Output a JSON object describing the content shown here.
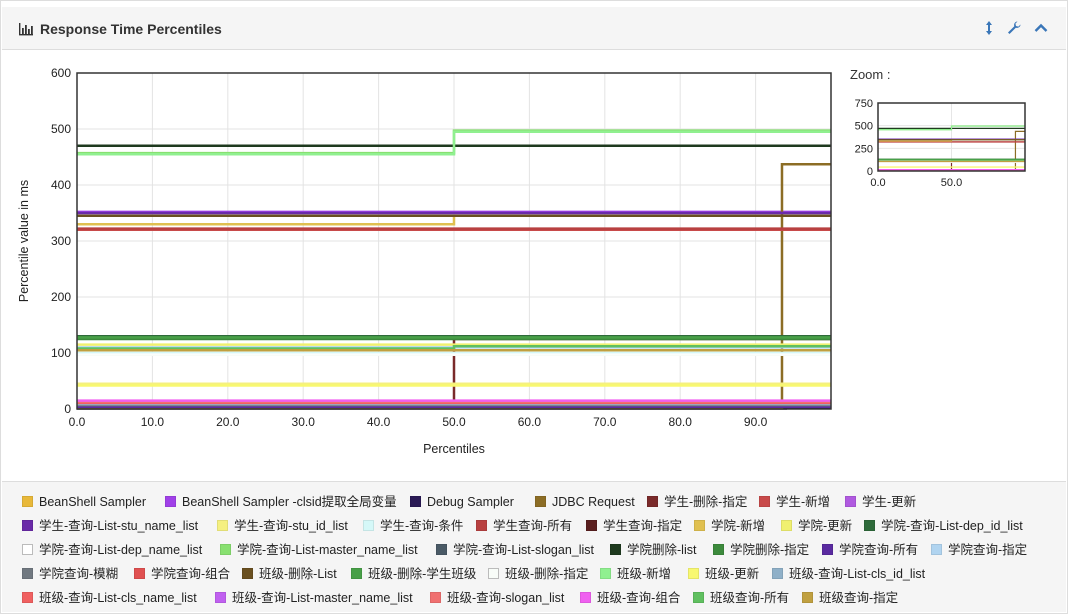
{
  "panel": {
    "title": "Response Time Percentiles",
    "icons": [
      "bar-chart-icon",
      "expand-vertical-icon",
      "wrench-icon",
      "chevron-up-icon"
    ]
  },
  "zoom": {
    "label": "Zoom :",
    "ylim": [
      0,
      750
    ],
    "yticks": [
      "750",
      "500",
      "250",
      "0"
    ],
    "xticks": [
      "0.0",
      "50.0"
    ]
  },
  "chart_data": {
    "type": "line",
    "xlabel": "Percentiles",
    "ylabel": "Percentile value in ms",
    "xlim": [
      0,
      100
    ],
    "ylim": [
      0,
      600
    ],
    "xticks": [
      0,
      10,
      20,
      30,
      40,
      50,
      60,
      70,
      80,
      90
    ],
    "xtick_labels": [
      "0.0",
      "10.0",
      "20.0",
      "30.0",
      "40.0",
      "50.0",
      "60.0",
      "70.0",
      "80.0",
      "90.0"
    ],
    "yticks": [
      0,
      100,
      200,
      300,
      400,
      500,
      600
    ],
    "ytick_labels": [
      "0",
      "100",
      "200",
      "300",
      "400",
      "500",
      "600"
    ],
    "grid": true,
    "legend_position": "bottom",
    "series": [
      {
        "name": "BeanShell Sampler",
        "color": "#e8b839",
        "points": [
          [
            0,
            2
          ],
          [
            100,
            2
          ]
        ]
      },
      {
        "name": "BeanShell Sampler -clsid提取全局变量",
        "color": "#a040e8",
        "points": [
          [
            0,
            352
          ],
          [
            100,
            352
          ]
        ]
      },
      {
        "name": "Debug Sampler",
        "color": "#2a1a55",
        "points": [
          [
            0,
            1
          ],
          [
            94,
            1
          ],
          [
            94,
            3
          ],
          [
            100,
            3
          ]
        ]
      },
      {
        "name": "JDBC Request",
        "color": "#8c6d25",
        "points": [
          [
            0,
            2
          ],
          [
            93.5,
            2
          ],
          [
            93.5,
            437
          ],
          [
            100,
            437
          ]
        ]
      },
      {
        "name": "学生-删除-指定",
        "color": "#7a2a2a",
        "points": [
          [
            0,
            5
          ],
          [
            50,
            5
          ],
          [
            50,
            125
          ],
          [
            100,
            125
          ]
        ]
      },
      {
        "name": "学生-新增",
        "color": "#c84a4a",
        "points": [
          [
            0,
            320
          ],
          [
            100,
            320
          ]
        ]
      },
      {
        "name": "学生-更新",
        "color": "#b05ae0",
        "points": [
          [
            0,
            12
          ],
          [
            100,
            12
          ]
        ]
      },
      {
        "name": "学生-查询-List-stu_name_list",
        "color": "#6a2aa8",
        "points": [
          [
            0,
            350
          ],
          [
            100,
            350
          ]
        ]
      },
      {
        "name": "学生-查询-stu_id_list",
        "color": "#f5f080",
        "points": [
          [
            0,
            45
          ],
          [
            100,
            45
          ]
        ]
      },
      {
        "name": "学生-查询-条件",
        "color": "#d5f8f8",
        "points": [
          [
            0,
            100
          ],
          [
            100,
            100
          ]
        ]
      },
      {
        "name": "学生查询-所有",
        "color": "#b84040",
        "points": [
          [
            0,
            322
          ],
          [
            100,
            322
          ]
        ]
      },
      {
        "name": "学生查询-指定",
        "color": "#5a1f1f",
        "points": [
          [
            0,
            8
          ],
          [
            100,
            8
          ]
        ]
      },
      {
        "name": "学院-新增",
        "color": "#e0c050",
        "points": [
          [
            0,
            330
          ],
          [
            50,
            330
          ],
          [
            50,
            345
          ],
          [
            100,
            345
          ]
        ]
      },
      {
        "name": "学院-更新",
        "color": "#f0f070",
        "points": [
          [
            0,
            115
          ],
          [
            100,
            115
          ]
        ]
      },
      {
        "name": "学院-查询-List-dep_id_list",
        "color": "#2e6a3a",
        "points": [
          [
            0,
            130
          ],
          [
            100,
            130
          ]
        ]
      },
      {
        "name": "学院-查询-List-dep_name_list",
        "color": "#ffffff",
        "points": [
          [
            0,
            98
          ],
          [
            100,
            98
          ]
        ]
      },
      {
        "name": "学院-查询-List-master_name_list",
        "color": "#88e070",
        "points": [
          [
            0,
            457
          ],
          [
            50,
            457
          ],
          [
            50,
            497
          ],
          [
            100,
            497
          ]
        ]
      },
      {
        "name": "学院-查询-List-slogan_list",
        "color": "#4a5a66",
        "points": [
          [
            0,
            6
          ],
          [
            100,
            6
          ]
        ]
      },
      {
        "name": "学院删除-list",
        "color": "#1f3a1f",
        "points": [
          [
            0,
            470
          ],
          [
            100,
            470
          ]
        ]
      },
      {
        "name": "学院删除-指定",
        "color": "#3c8a3c",
        "points": [
          [
            0,
            125
          ],
          [
            100,
            125
          ]
        ]
      },
      {
        "name": "学院查询-所有",
        "color": "#5a2aa0",
        "points": [
          [
            0,
            4
          ],
          [
            100,
            4
          ]
        ]
      },
      {
        "name": "学院查询-指定",
        "color": "#b0d4f0",
        "points": [
          [
            0,
            110
          ],
          [
            100,
            110
          ]
        ]
      },
      {
        "name": "学院查询-模糊",
        "color": "#707880",
        "points": [
          [
            0,
            7
          ],
          [
            100,
            7
          ]
        ]
      },
      {
        "name": "学院查询-组合",
        "color": "#e05050",
        "points": [
          [
            0,
            10
          ],
          [
            100,
            10
          ]
        ]
      },
      {
        "name": "班级-删除-List",
        "color": "#6a5020",
        "points": [
          [
            0,
            345
          ],
          [
            100,
            345
          ]
        ]
      },
      {
        "name": "班级-删除-学生班级",
        "color": "#48a048",
        "points": [
          [
            0,
            128
          ],
          [
            100,
            128
          ]
        ]
      },
      {
        "name": "班级-删除-指定",
        "color": "#f8fcf8",
        "points": [
          [
            0,
            96
          ],
          [
            100,
            96
          ]
        ]
      },
      {
        "name": "班级-新增",
        "color": "#90f090",
        "points": [
          [
            0,
            455
          ],
          [
            50,
            455
          ],
          [
            50,
            495
          ],
          [
            100,
            495
          ]
        ]
      },
      {
        "name": "班级-更新",
        "color": "#f8f870",
        "points": [
          [
            0,
            42
          ],
          [
            100,
            42
          ]
        ]
      },
      {
        "name": "班级-查询-List-cls_id_list",
        "color": "#8fb0c8",
        "points": [
          [
            0,
            9
          ],
          [
            100,
            9
          ]
        ]
      },
      {
        "name": "班级-查询-List-cls_name_list",
        "color": "#f06060",
        "points": [
          [
            0,
            11
          ],
          [
            100,
            11
          ]
        ]
      },
      {
        "name": "班级-查询-List-master_name_list",
        "color": "#c060f0",
        "points": [
          [
            0,
            14
          ],
          [
            100,
            14
          ]
        ]
      },
      {
        "name": "班级-查询-slogan_list",
        "color": "#f07070",
        "points": [
          [
            0,
            13
          ],
          [
            100,
            13
          ]
        ]
      },
      {
        "name": "班级-查询-组合",
        "color": "#f060f0",
        "points": [
          [
            0,
            15
          ],
          [
            100,
            15
          ]
        ]
      },
      {
        "name": "班级查询-所有",
        "color": "#60c060",
        "points": [
          [
            0,
            108
          ],
          [
            50,
            108
          ],
          [
            50,
            112
          ],
          [
            100,
            112
          ]
        ]
      },
      {
        "name": "班级查询-指定",
        "color": "#c0a040",
        "points": [
          [
            0,
            105
          ],
          [
            100,
            105
          ]
        ]
      }
    ]
  }
}
